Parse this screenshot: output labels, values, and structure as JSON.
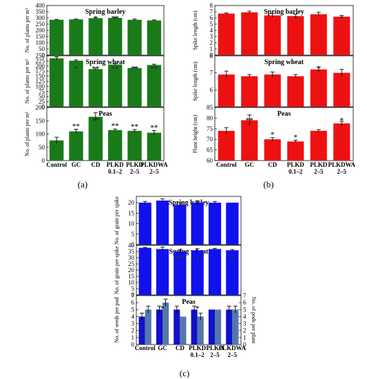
{
  "panel_letters": {
    "a": "(a)",
    "b": "(b)",
    "c": "(c)"
  },
  "chart_data": [
    {
      "type": "bar",
      "panel_id": "a",
      "categories": [
        "Control",
        "GC",
        "CD",
        "PLKD 0.1–2",
        "PLKD 2–5",
        "PLKDWA 2–5"
      ],
      "tick_labels": [
        [
          "Control"
        ],
        [
          "GC"
        ],
        [
          "CD"
        ],
        [
          "PLKD",
          "0.1–2"
        ],
        [
          "PLKD",
          "2–5"
        ],
        [
          "PLKDWA",
          "2–5"
        ]
      ],
      "bar_color": "#1a7a1a",
      "subplots": [
        {
          "title": "Spring barley",
          "ylabel": "No. of plants per m²",
          "ylim": [
            0,
            400
          ],
          "yticks": [
            0,
            50,
            100,
            150,
            200,
            250,
            300,
            350,
            400
          ],
          "values": [
            285,
            288,
            298,
            300,
            285,
            280
          ],
          "errors": [
            3,
            3,
            4,
            5,
            6,
            4
          ],
          "stars": [
            "",
            "",
            "*",
            "**",
            "",
            ""
          ]
        },
        {
          "title": "Spring wheat",
          "ylabel": "No. of plants per m²",
          "ylim": [
            0,
            250
          ],
          "yticks": [
            0,
            25,
            50,
            75,
            100,
            125,
            150,
            175,
            200,
            225,
            250
          ],
          "values": [
            238,
            226,
            185,
            207,
            190,
            205
          ],
          "errors": [
            7,
            4,
            5,
            5,
            4,
            4
          ],
          "stars": [
            "",
            "*",
            "**",
            "**",
            "**",
            "**"
          ]
        },
        {
          "title": "Peas",
          "ylabel": "No. of plants per m²",
          "ylim": [
            0,
            200
          ],
          "yticks": [
            0,
            50,
            100,
            150,
            200
          ],
          "values": [
            76,
            110,
            165,
            115,
            112,
            105
          ],
          "errors": [
            12,
            8,
            15,
            4,
            5,
            8
          ],
          "stars": [
            "",
            "**",
            "**",
            "**",
            "**",
            "**"
          ]
        }
      ]
    },
    {
      "type": "bar",
      "panel_id": "b",
      "categories": [
        "Control",
        "GC",
        "CD",
        "PLKD 0.1–2",
        "PLKD 2–5",
        "PLKDWA 2–5"
      ],
      "tick_labels": [
        [
          "Control"
        ],
        [
          "GC"
        ],
        [
          "CD"
        ],
        [
          "PLKD",
          "0.1–2"
        ],
        [
          "PLKD",
          "2–5"
        ],
        [
          "PLKDWA",
          "2–5"
        ]
      ],
      "bar_color": "#ee1111",
      "subplots": [
        {
          "title": "Spring barley",
          "ylabel": "Spike length (cm)",
          "ylim": [
            0,
            8
          ],
          "yticks": [
            0,
            1,
            2,
            3,
            4,
            5,
            6,
            7,
            8
          ],
          "values": [
            6.7,
            6.9,
            6.4,
            6.3,
            6.6,
            6.2
          ],
          "errors": [
            0.1,
            0.2,
            0.3,
            0.3,
            0.3,
            0.2
          ],
          "stars": [
            "",
            "",
            "",
            "*",
            "",
            "*"
          ]
        },
        {
          "title": "Spring wheat",
          "ylabel": "Spike length (cm)",
          "ylim": [
            5,
            8
          ],
          "yticks": [
            6,
            7,
            8
          ],
          "values": [
            6.9,
            6.8,
            6.9,
            6.8,
            7.2,
            7.0
          ],
          "errors": [
            0.2,
            0.1,
            0.15,
            0.1,
            0.15,
            0.2
          ],
          "stars": [
            "",
            "",
            "",
            "",
            "*",
            ""
          ]
        },
        {
          "title": "Peas",
          "ylabel": "Plant height (cm)",
          "ylim": [
            60,
            85
          ],
          "yticks": [
            60,
            65,
            70,
            75,
            80,
            85
          ],
          "values": [
            74,
            79,
            70,
            69,
            74,
            77.5
          ],
          "errors": [
            1.5,
            2.5,
            0.8,
            0.6,
            0.6,
            1
          ],
          "stars": [
            "",
            "**",
            "*",
            "*",
            "",
            "*"
          ]
        }
      ]
    },
    {
      "type": "bar",
      "panel_id": "c",
      "categories": [
        "Control",
        "GC",
        "CD",
        "PLKD 0.1–2",
        "PLKD 2–5",
        "PLKDWA 2–5"
      ],
      "tick_labels": [
        [
          "Control"
        ],
        [
          "GC"
        ],
        [
          "CD"
        ],
        [
          "PLKD",
          "0.1–2"
        ],
        [
          "PLKD",
          "2–5"
        ],
        [
          "PLKDWA",
          "2–5"
        ]
      ],
      "bar_color": "#1111ee",
      "subplots": [
        {
          "title": "Spring barley",
          "ylabel": "No. of grain per spike",
          "ylim": [
            0,
            23
          ],
          "yticks": [
            0,
            5,
            10,
            15,
            20
          ],
          "values": [
            20,
            21,
            19,
            20,
            20,
            20
          ],
          "errors": [
            0.6,
            0.8,
            0.8,
            1,
            0.6,
            0
          ],
          "stars": [
            "",
            "",
            "",
            "",
            "",
            ""
          ]
        },
        {
          "title": "Spring wheat",
          "ylabel": "No. of grain per spike",
          "ylim": [
            0,
            40
          ],
          "yticks": [
            0,
            5,
            10,
            15,
            20,
            25,
            30,
            35,
            40
          ],
          "values": [
            38,
            37,
            35,
            36,
            37,
            36
          ],
          "errors": [
            0.3,
            1.5,
            1.5,
            1.2,
            0.6,
            0.6
          ],
          "stars": [
            "",
            "",
            "**",
            "*",
            "",
            "*"
          ]
        },
        {
          "title": "Peas",
          "ylabel": "No. of seeds per pod",
          "y2label": "No. of pods per plant",
          "ylim": [
            0,
            7
          ],
          "yticks": [
            0,
            1,
            2,
            3,
            4,
            5,
            6,
            7
          ],
          "y2ticks": [
            0,
            1,
            2,
            3,
            4,
            5,
            6,
            7
          ],
          "series": [
            {
              "values": [
                4,
                5,
                5,
                5,
                5,
                5
              ],
              "errors": [
                0.5,
                0.5,
                0.5,
                0.5,
                0,
                0.5
              ],
              "color": "#1111cc"
            },
            {
              "values": [
                5,
                6,
                4,
                4,
                5,
                5
              ],
              "errors": [
                0.5,
                0.5,
                0,
                0.5,
                0,
                0.5
              ],
              "color": "#5577aa"
            }
          ],
          "stars": [
            "",
            "*",
            "",
            "*",
            "",
            ""
          ]
        }
      ]
    }
  ]
}
